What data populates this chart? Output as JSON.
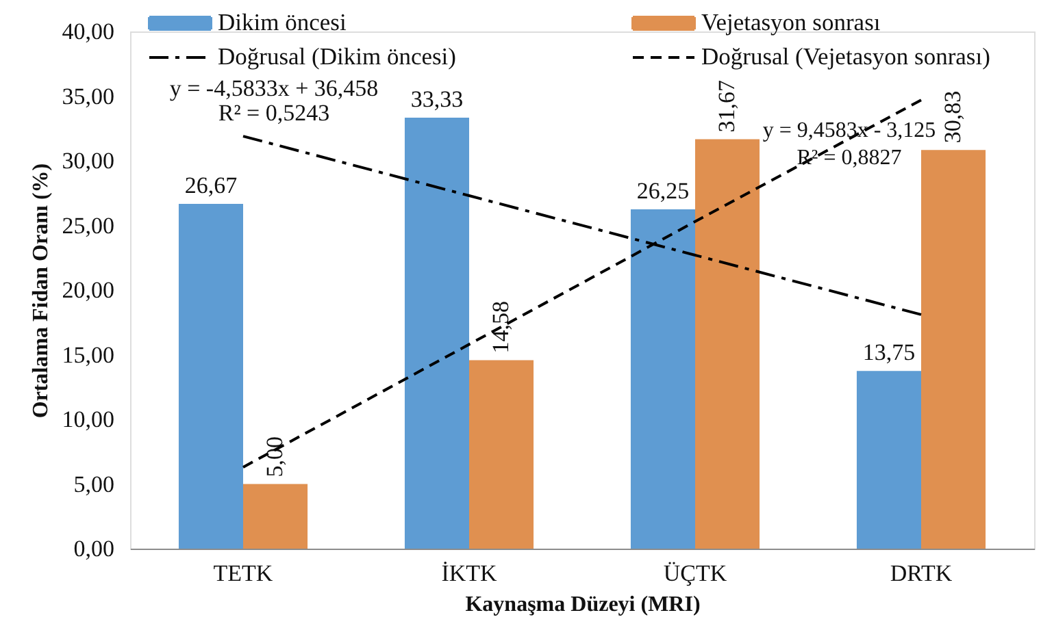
{
  "chart_data": {
    "type": "bar",
    "categories": [
      "TETK",
      "İKTK",
      "ÜÇTK",
      "DRTK"
    ],
    "series": [
      {
        "name": "Dikim öncesi",
        "color": "#5e9cd3",
        "values": [
          26.67,
          33.33,
          26.25,
          13.75
        ],
        "value_labels": [
          "26,67",
          "33,33",
          "26,25",
          "13,75"
        ]
      },
      {
        "name": "Vejetasyon sonrası",
        "color": "#e09050",
        "values": [
          5.0,
          14.58,
          31.67,
          30.83
        ],
        "value_labels": [
          "5,00",
          "14,58",
          "31,67",
          "30,83"
        ]
      },
      {
        "name": "Doğrusal (Dikim öncesi)",
        "type": "line",
        "color": "#000000",
        "line_style": "dashdot",
        "x": [
          "TETK",
          "İKTK",
          "ÜÇTK",
          "DRTK"
        ],
        "values": [
          31.9,
          27.3,
          22.7,
          18.1
        ]
      },
      {
        "name": "Doğrusal (Vejetasyon sonrası)",
        "type": "line",
        "color": "#000000",
        "line_style": "dashed",
        "x": [
          "TETK",
          "İKTK",
          "ÜÇTK",
          "DRTK"
        ],
        "values": [
          6.3,
          15.8,
          25.3,
          34.7
        ]
      }
    ],
    "xlabel": "Kaynaşma Düzeyi (MRI)",
    "ylabel": "Ortalama Fidan Oranı (%)",
    "ylim": [
      0,
      40
    ],
    "yticks": [
      {
        "value": 0,
        "label": "0,00"
      },
      {
        "value": 5,
        "label": "5,00"
      },
      {
        "value": 10,
        "label": "10,00"
      },
      {
        "value": 15,
        "label": "15,00"
      },
      {
        "value": 20,
        "label": "20,00"
      },
      {
        "value": 25,
        "label": "25,00"
      },
      {
        "value": 30,
        "label": "30,00"
      },
      {
        "value": 35,
        "label": "35,00"
      },
      {
        "value": 40,
        "label": "40,00"
      }
    ],
    "annotations": [
      "y = -4,5833x + 36,458",
      "R² = 0,5243",
      "y = 9,4583x - 3,125",
      "R² = 0,8827"
    ],
    "legend": "top"
  }
}
